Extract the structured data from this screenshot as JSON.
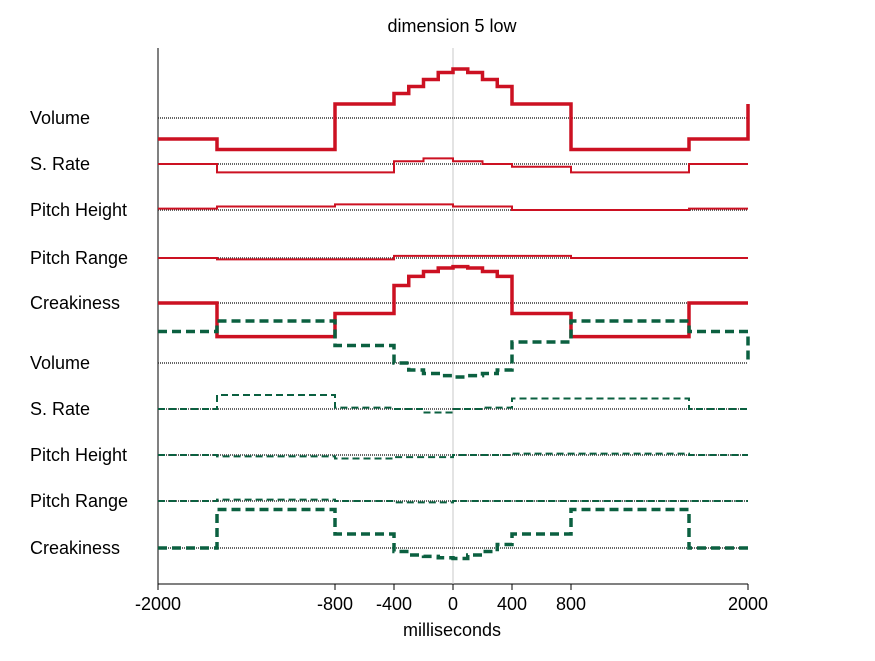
{
  "chart_data": {
    "type": "line",
    "title": "dimension  5 low",
    "xlabel": "milliseconds",
    "ylabel": "",
    "xlim": [
      -2000,
      2000
    ],
    "xticks": [
      -2000,
      -800,
      -400,
      0,
      400,
      800,
      2000
    ],
    "grid": false,
    "zero_line": true,
    "colors": {
      "top_group": "#cc1122",
      "bottom_group": "#0b6040",
      "baseline": "#333333",
      "zero": "#c8c8c8"
    },
    "groups": [
      {
        "style": "solid",
        "color": "#cc1122",
        "features": [
          {
            "label": "Volume",
            "x": [
              -2000,
              -1600,
              -800,
              -400,
              -300,
              -200,
              -100,
              0,
              100,
              200,
              300,
              400,
              800,
              1600,
              2000
            ],
            "y": [
              -0.3,
              -0.45,
              0.2,
              0.35,
              0.45,
              0.55,
              0.65,
              0.7,
              0.65,
              0.55,
              0.45,
              0.2,
              -0.45,
              -0.3,
              0.2
            ],
            "scale": 0.005
          },
          {
            "label": "S. Rate",
            "x": [
              -2000,
              -1600,
              -800,
              -400,
              -200,
              0,
              200,
              400,
              800,
              1600,
              2000
            ],
            "y": [
              0,
              -0.12,
              -0.12,
              0.04,
              0.08,
              0.04,
              0,
              -0.04,
              -0.12,
              0,
              0
            ],
            "scale": 0.005
          },
          {
            "label": "Pitch Height",
            "x": [
              -2000,
              -1600,
              -800,
              -400,
              0,
              400,
              800,
              1600,
              2000
            ],
            "y": [
              0.02,
              0.05,
              0.08,
              0.08,
              0.05,
              0,
              0,
              0.02,
              0.02
            ],
            "scale": 0.005
          },
          {
            "label": "Pitch Range",
            "x": [
              -2000,
              -1600,
              -800,
              -400,
              0,
              400,
              800,
              1600,
              2000
            ],
            "y": [
              0,
              -0.02,
              -0.02,
              0.03,
              0.03,
              0.03,
              0,
              0,
              0
            ],
            "scale": 0.005
          },
          {
            "label": "Creakiness",
            "x": [
              -2000,
              -1600,
              -800,
              -400,
              -300,
              -200,
              -100,
              0,
              100,
              200,
              300,
              400,
              800,
              1600,
              2000
            ],
            "y": [
              0,
              -0.48,
              -0.15,
              0.25,
              0.38,
              0.45,
              0.5,
              0.52,
              0.5,
              0.45,
              0.38,
              -0.15,
              -0.48,
              0,
              0
            ],
            "scale": 0.005
          }
        ]
      },
      {
        "style": "dashed",
        "color": "#0b6040",
        "features": [
          {
            "label": "Volume",
            "x": [
              -2000,
              -1600,
              -800,
              -400,
              -300,
              -200,
              -100,
              0,
              100,
              200,
              300,
              400,
              800,
              1600,
              2000
            ],
            "y": [
              0.45,
              0.6,
              0.25,
              0,
              -0.1,
              -0.15,
              -0.18,
              -0.2,
              -0.18,
              -0.15,
              -0.1,
              0.3,
              0.6,
              0.45,
              0
            ],
            "scale": 0.005
          },
          {
            "label": "S. Rate",
            "x": [
              -2000,
              -1600,
              -800,
              -400,
              -200,
              0,
              200,
              400,
              800,
              1600,
              2000
            ],
            "y": [
              0,
              0.2,
              0.02,
              0,
              -0.05,
              0,
              0.02,
              0.15,
              0.15,
              0,
              0
            ],
            "scale": 0.005
          },
          {
            "label": "Pitch Height",
            "x": [
              -2000,
              -1600,
              -800,
              -400,
              0,
              400,
              800,
              1600,
              2000
            ],
            "y": [
              0,
              -0.02,
              -0.05,
              -0.03,
              0,
              0.02,
              0.02,
              0,
              0
            ],
            "scale": 0.005
          },
          {
            "label": "Pitch Range",
            "x": [
              -2000,
              -1600,
              -800,
              -400,
              0,
              400,
              800,
              1600,
              2000
            ],
            "y": [
              0,
              0.02,
              0,
              -0.02,
              0,
              0,
              0,
              0,
              0
            ],
            "scale": 0.005
          },
          {
            "label": "Creakiness",
            "x": [
              -2000,
              -1600,
              -800,
              -400,
              -300,
              -200,
              -100,
              0,
              100,
              200,
              300,
              400,
              800,
              1600,
              2000
            ],
            "y": [
              0,
              0.55,
              0.2,
              -0.05,
              -0.1,
              -0.12,
              -0.14,
              -0.15,
              -0.1,
              -0.05,
              0.05,
              0.2,
              0.55,
              0,
              0
            ],
            "scale": 0.005
          }
        ]
      }
    ]
  }
}
